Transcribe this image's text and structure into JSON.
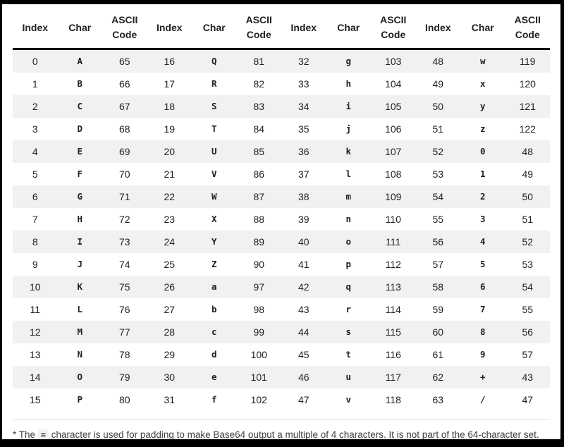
{
  "table": {
    "columns": [
      "Index",
      "Char",
      "ASCII Code",
      "Index",
      "Char",
      "ASCII Code",
      "Index",
      "Char",
      "ASCII Code",
      "Index",
      "Char",
      "ASCII Code"
    ],
    "char_column_indexes": [
      1,
      4,
      7,
      10
    ],
    "rows": [
      [
        0,
        "A",
        65,
        16,
        "Q",
        81,
        32,
        "g",
        103,
        48,
        "w",
        119
      ],
      [
        1,
        "B",
        66,
        17,
        "R",
        82,
        33,
        "h",
        104,
        49,
        "x",
        120
      ],
      [
        2,
        "C",
        67,
        18,
        "S",
        83,
        34,
        "i",
        105,
        50,
        "y",
        121
      ],
      [
        3,
        "D",
        68,
        19,
        "T",
        84,
        35,
        "j",
        106,
        51,
        "z",
        122
      ],
      [
        4,
        "E",
        69,
        20,
        "U",
        85,
        36,
        "k",
        107,
        52,
        "0",
        48
      ],
      [
        5,
        "F",
        70,
        21,
        "V",
        86,
        37,
        "l",
        108,
        53,
        "1",
        49
      ],
      [
        6,
        "G",
        71,
        22,
        "W",
        87,
        38,
        "m",
        109,
        54,
        "2",
        50
      ],
      [
        7,
        "H",
        72,
        23,
        "X",
        88,
        39,
        "n",
        110,
        55,
        "3",
        51
      ],
      [
        8,
        "I",
        73,
        24,
        "Y",
        89,
        40,
        "o",
        111,
        56,
        "4",
        52
      ],
      [
        9,
        "J",
        74,
        25,
        "Z",
        90,
        41,
        "p",
        112,
        57,
        "5",
        53
      ],
      [
        10,
        "K",
        75,
        26,
        "a",
        97,
        42,
        "q",
        113,
        58,
        "6",
        54
      ],
      [
        11,
        "L",
        76,
        27,
        "b",
        98,
        43,
        "r",
        114,
        59,
        "7",
        55
      ],
      [
        12,
        "M",
        77,
        28,
        "c",
        99,
        44,
        "s",
        115,
        60,
        "8",
        56
      ],
      [
        13,
        "N",
        78,
        29,
        "d",
        100,
        45,
        "t",
        116,
        61,
        "9",
        57
      ],
      [
        14,
        "O",
        79,
        30,
        "e",
        101,
        46,
        "u",
        117,
        62,
        "+",
        43
      ],
      [
        15,
        "P",
        80,
        31,
        "f",
        102,
        47,
        "v",
        118,
        63,
        "/",
        47
      ]
    ]
  },
  "footnote": {
    "prefix": "* The ",
    "code": "=",
    "suffix": " character is used for padding to make Base64 output a multiple of 4 characters. It is not part of the 64-character set."
  },
  "colors": {
    "frame": "#000000",
    "row_stripe": "#f1f1f1",
    "text": "#202124",
    "header_rule": "#0a0a0a",
    "footnote_text": "#3c4043",
    "footnote_rule": "#e3e3e3",
    "code_chip_bg": "#f1f3f4"
  }
}
